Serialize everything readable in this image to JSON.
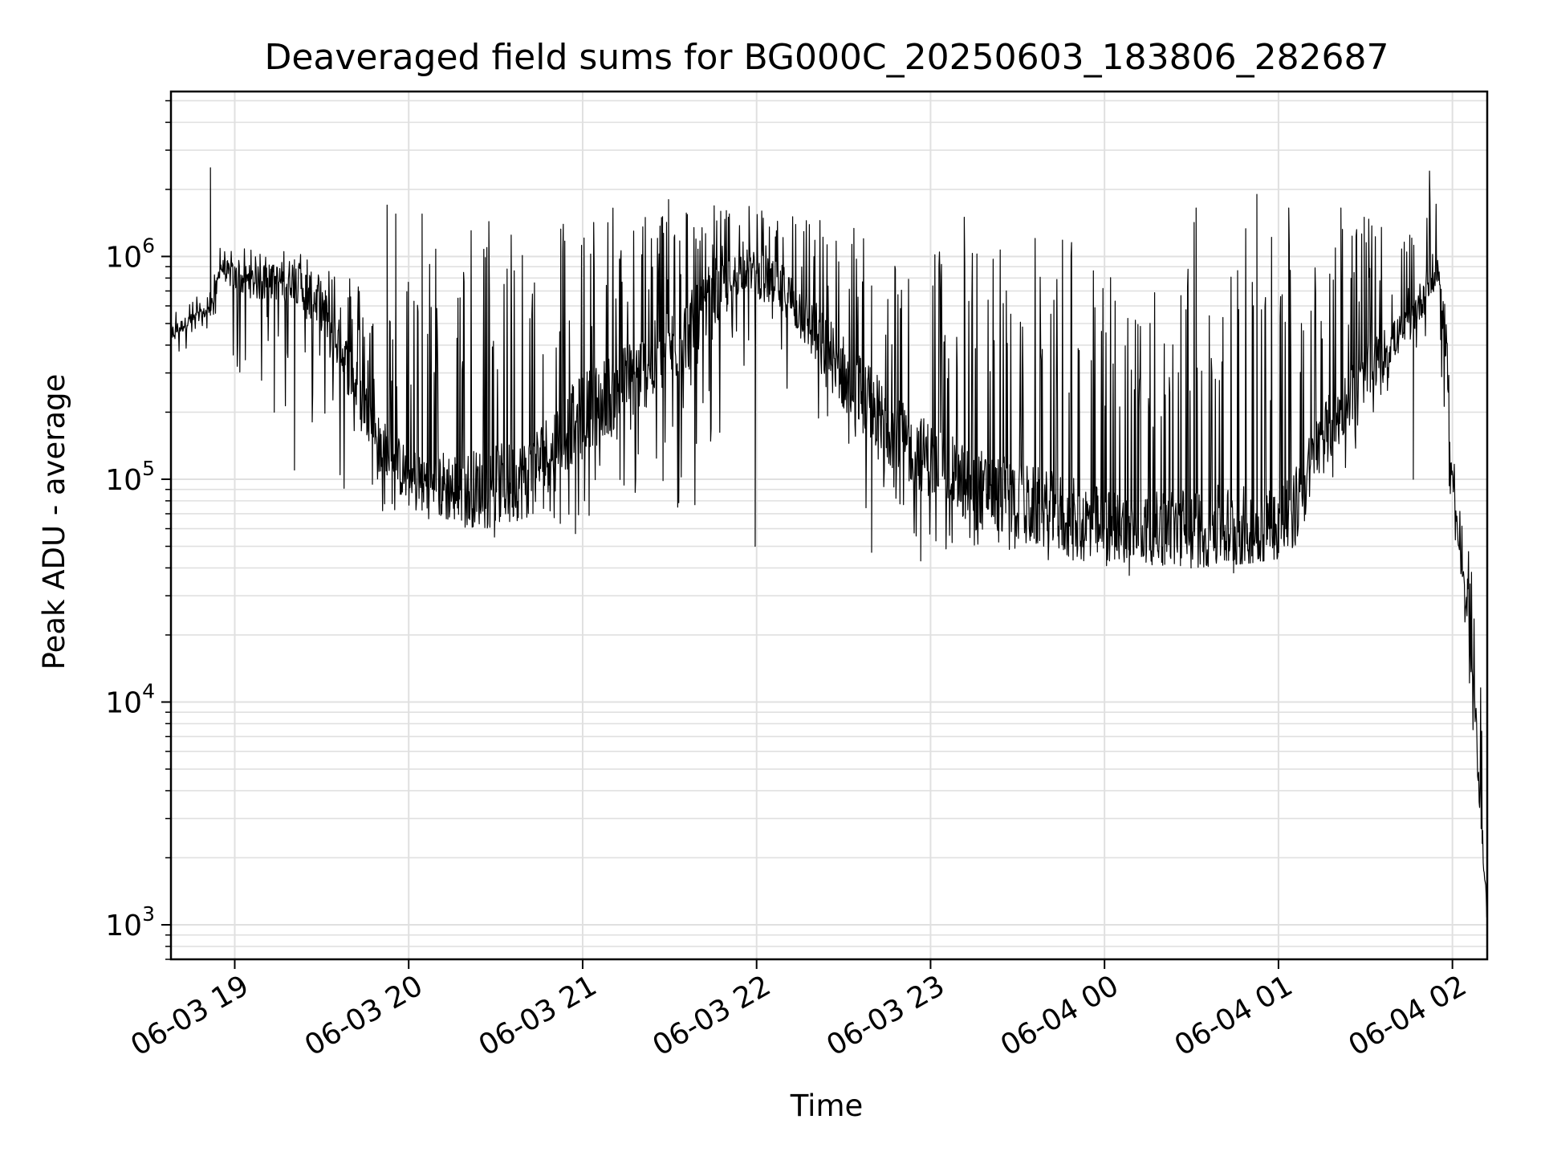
{
  "chart_data": {
    "type": "line",
    "title": "Deaveraged field sums for BG000C_20250603_183806_282687",
    "xlabel": "Time",
    "ylabel": "Peak ADU - average",
    "yscale": "log",
    "ylim": [
      700,
      5500000
    ],
    "xlim": [
      "06-03 18:38",
      "06-04 02:12"
    ],
    "grid": true,
    "line_color": "#000000",
    "grid_color": "#e0e0e0",
    "x_ticks": [
      {
        "label": "06-03 19",
        "t": "06-03 19:00"
      },
      {
        "label": "06-03 20",
        "t": "06-03 20:00"
      },
      {
        "label": "06-03 21",
        "t": "06-03 21:00"
      },
      {
        "label": "06-03 22",
        "t": "06-03 22:00"
      },
      {
        "label": "06-03 23",
        "t": "06-03 23:00"
      },
      {
        "label": "06-04 00",
        "t": "06-04 00:00"
      },
      {
        "label": "06-04 01",
        "t": "06-04 01:00"
      },
      {
        "label": "06-04 02",
        "t": "06-04 02:00"
      }
    ],
    "y_ticks": [
      {
        "base": "10",
        "exp": "3",
        "value": 1000
      },
      {
        "base": "10",
        "exp": "4",
        "value": 10000
      },
      {
        "base": "10",
        "exp": "5",
        "value": 100000
      },
      {
        "base": "10",
        "exp": "6",
        "value": 1000000
      }
    ],
    "series": [
      {
        "envelope": [
          {
            "t": "06-03 18:38",
            "low": 300000,
            "high": 600000,
            "base": 450000
          },
          {
            "t": "06-03 18:45",
            "low": 400000,
            "high": 650000,
            "base": 520000
          },
          {
            "t": "06-03 18:52",
            "low": 450000,
            "high": 700000,
            "base": 580000
          },
          {
            "t": "06-03 18:55",
            "low": 600000,
            "high": 1200000,
            "base": 900000
          },
          {
            "t": "06-03 19:00",
            "low": 300000,
            "high": 1100000,
            "base": 800000
          },
          {
            "t": "06-03 19:10",
            "low": 250000,
            "high": 1050000,
            "base": 750000
          },
          {
            "t": "06-03 19:20",
            "low": 200000,
            "high": 1100000,
            "base": 800000
          },
          {
            "t": "06-03 19:30",
            "low": 120000,
            "high": 1000000,
            "base": 600000
          },
          {
            "t": "06-03 19:40",
            "low": 80000,
            "high": 900000,
            "base": 300000
          },
          {
            "t": "06-03 19:50",
            "low": 70000,
            "high": 500000,
            "base": 150000
          },
          {
            "t": "06-03 20:00",
            "low": 70000,
            "high": 1000000,
            "base": 100000
          },
          {
            "t": "06-03 20:20",
            "low": 60000,
            "high": 1500000,
            "base": 90000
          },
          {
            "t": "06-03 20:40",
            "low": 60000,
            "high": 1700000,
            "base": 100000
          },
          {
            "t": "06-03 21:00",
            "low": 60000,
            "high": 1650000,
            "base": 200000
          },
          {
            "t": "06-03 21:20",
            "low": 60000,
            "high": 1700000,
            "base": 300000
          },
          {
            "t": "06-03 21:40",
            "low": 65000,
            "high": 1750000,
            "base": 500000
          },
          {
            "t": "06-03 21:55",
            "low": 300000,
            "high": 1700000,
            "base": 900000
          },
          {
            "t": "06-03 22:10",
            "low": 200000,
            "high": 1650000,
            "base": 700000
          },
          {
            "t": "06-03 22:30",
            "low": 60000,
            "high": 1500000,
            "base": 300000
          },
          {
            "t": "06-03 22:50",
            "low": 50000,
            "high": 1200000,
            "base": 150000
          },
          {
            "t": "06-03 23:10",
            "low": 45000,
            "high": 1100000,
            "base": 100000
          },
          {
            "t": "06-03 23:30",
            "low": 45000,
            "high": 1200000,
            "base": 80000
          },
          {
            "t": "06-03 23:50",
            "low": 42000,
            "high": 1400000,
            "base": 65000
          },
          {
            "t": "06-04 00:10",
            "low": 38000,
            "high": 600000,
            "base": 60000
          },
          {
            "t": "06-04 00:30",
            "low": 40000,
            "high": 1500000,
            "base": 60000
          },
          {
            "t": "06-04 00:50",
            "low": 42000,
            "high": 1600000,
            "base": 60000
          },
          {
            "t": "06-04 01:05",
            "low": 45000,
            "high": 1300000,
            "base": 70000
          },
          {
            "t": "06-04 01:15",
            "low": 80000,
            "high": 1600000,
            "base": 150000
          },
          {
            "t": "06-04 01:30",
            "low": 150000,
            "high": 1500000,
            "base": 300000
          },
          {
            "t": "06-04 01:45",
            "low": 300000,
            "high": 1200000,
            "base": 500000
          },
          {
            "t": "06-04 01:53",
            "low": 500000,
            "high": 3500000,
            "base": 800000
          },
          {
            "t": "06-04 01:55",
            "low": 500000,
            "high": 1800000,
            "base": 900000
          },
          {
            "t": "06-04 01:57",
            "low": 200000,
            "high": 800000,
            "base": 500000
          },
          {
            "t": "06-04 02:00",
            "low": 60000,
            "high": 150000,
            "base": 100000
          },
          {
            "t": "06-04 02:05",
            "low": 15000,
            "high": 50000,
            "base": 25000
          },
          {
            "t": "06-04 02:08",
            "low": 5000,
            "high": 40000,
            "base": 8000
          },
          {
            "t": "06-04 02:10",
            "low": 2500,
            "high": 10000,
            "base": 3000
          },
          {
            "t": "06-04 02:12",
            "low": 1000,
            "high": 3000,
            "base": 1000
          }
        ],
        "spikes": [
          {
            "t": "06-03 18:52",
            "value": 2500000
          },
          {
            "t": "06-03 19:14",
            "value": 200000
          },
          {
            "t": "06-03 19:21",
            "value": 110000
          },
          {
            "t": "06-03 19:53",
            "value": 1700000
          },
          {
            "t": "06-03 19:56",
            "value": 1550000
          },
          {
            "t": "06-03 20:05",
            "value": 1550000
          },
          {
            "t": "06-03 20:30",
            "value": 55000
          },
          {
            "t": "06-03 20:58",
            "value": 57000
          },
          {
            "t": "06-03 21:30",
            "value": 1800000
          },
          {
            "t": "06-03 22:00",
            "value": 50000
          },
          {
            "t": "06-03 22:40",
            "value": 47000
          },
          {
            "t": "06-03 22:57",
            "value": 43000
          },
          {
            "t": "06-03 23:12",
            "value": 1500000
          },
          {
            "t": "06-04 00:09",
            "value": 37000
          },
          {
            "t": "06-04 00:32",
            "value": 1650000
          },
          {
            "t": "06-04 00:45",
            "value": 38000
          },
          {
            "t": "06-04 00:53",
            "value": 1900000
          },
          {
            "t": "06-04 01:04",
            "value": 1650000
          },
          {
            "t": "06-04 01:22",
            "value": 1650000
          },
          {
            "t": "06-04 01:30",
            "value": 1500000
          },
          {
            "t": "06-04 01:47",
            "value": 100000
          }
        ]
      }
    ]
  }
}
